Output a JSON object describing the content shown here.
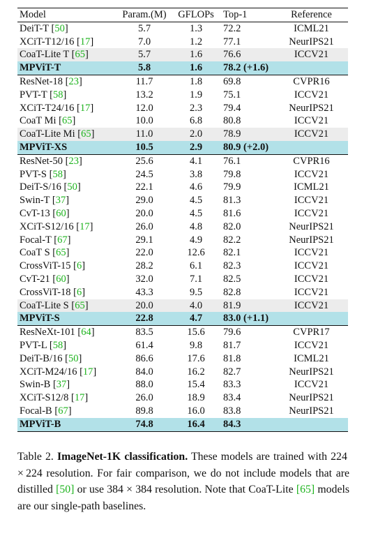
{
  "table": {
    "headers": [
      "Model",
      "Param.(M)",
      "GFLOPs",
      "Top-1",
      "Reference"
    ],
    "rows": [
      {
        "model": "DeiT-T",
        "cite": "50",
        "params": "5.7",
        "gflops": "1.3",
        "top1": "72.2",
        "ref": "ICML21",
        "style": "first"
      },
      {
        "model": "XCiT-T12/16",
        "cite": "17",
        "params": "7.0",
        "gflops": "1.2",
        "top1": "77.1",
        "ref": "NeurIPS21",
        "style": ""
      },
      {
        "model": "CoaT-Lite T",
        "cite": "65",
        "params": "5.7",
        "gflops": "1.6",
        "top1": "76.6",
        "ref": "ICCV21",
        "style": "baseline"
      },
      {
        "model": "MPViT-T",
        "cite": "",
        "params": "5.8",
        "gflops": "1.6",
        "top1": "78.2 (+1.6)",
        "ref": "",
        "style": "ours"
      },
      {
        "model": "ResNet-18",
        "cite": "23",
        "params": "11.7",
        "gflops": "1.8",
        "top1": "69.8",
        "ref": "CVPR16",
        "style": ""
      },
      {
        "model": "PVT-T",
        "cite": "58",
        "params": "13.2",
        "gflops": "1.9",
        "top1": "75.1",
        "ref": "ICCV21",
        "style": ""
      },
      {
        "model": "XCiT-T24/16",
        "cite": "17",
        "params": "12.0",
        "gflops": "2.3",
        "top1": "79.4",
        "ref": "NeurIPS21",
        "style": ""
      },
      {
        "model": "CoaT Mi",
        "cite": "65",
        "params": "10.0",
        "gflops": "6.8",
        "top1": "80.8",
        "ref": "ICCV21",
        "style": ""
      },
      {
        "model": "CoaT-Lite Mi",
        "cite": "65",
        "params": "11.0",
        "gflops": "2.0",
        "top1": "78.9",
        "ref": "ICCV21",
        "style": "baseline"
      },
      {
        "model": "MPViT-XS",
        "cite": "",
        "params": "10.5",
        "gflops": "2.9",
        "top1": "80.9 (+2.0)",
        "ref": "",
        "style": "ours"
      },
      {
        "model": "ResNet-50",
        "cite": "23",
        "params": "25.6",
        "gflops": "4.1",
        "top1": "76.1",
        "ref": "CVPR16",
        "style": ""
      },
      {
        "model": "PVT-S",
        "cite": "58",
        "params": "24.5",
        "gflops": "3.8",
        "top1": "79.8",
        "ref": "ICCV21",
        "style": ""
      },
      {
        "model": "DeiT-S/16",
        "cite": "50",
        "params": "22.1",
        "gflops": "4.6",
        "top1": "79.9",
        "ref": "ICML21",
        "style": ""
      },
      {
        "model": "Swin-T",
        "cite": "37",
        "params": "29.0",
        "gflops": "4.5",
        "top1": "81.3",
        "ref": "ICCV21",
        "style": ""
      },
      {
        "model": "CvT-13",
        "cite": "60",
        "params": "20.0",
        "gflops": "4.5",
        "top1": "81.6",
        "ref": "ICCV21",
        "style": ""
      },
      {
        "model": "XCiT-S12/16",
        "cite": "17",
        "params": "26.0",
        "gflops": "4.8",
        "top1": "82.0",
        "ref": "NeurIPS21",
        "style": ""
      },
      {
        "model": "Focal-T",
        "cite": "67",
        "params": "29.1",
        "gflops": "4.9",
        "top1": "82.2",
        "ref": "NeurIPS21",
        "style": ""
      },
      {
        "model": "CoaT S",
        "cite": "65",
        "params": "22.0",
        "gflops": "12.6",
        "top1": "82.1",
        "ref": "ICCV21",
        "style": ""
      },
      {
        "model": "CrossViT-15",
        "cite": "6",
        "params": "28.2",
        "gflops": "6.1",
        "top1": "82.3",
        "ref": "ICCV21",
        "style": ""
      },
      {
        "model": "CvT-21",
        "cite": "60",
        "params": "32.0",
        "gflops": "7.1",
        "top1": "82.5",
        "ref": "ICCV21",
        "style": ""
      },
      {
        "model": "CrossViT-18",
        "cite": "6",
        "params": "43.3",
        "gflops": "9.5",
        "top1": "82.8",
        "ref": "ICCV21",
        "style": ""
      },
      {
        "model": "CoaT-Lite S",
        "cite": "65",
        "params": "20.0",
        "gflops": "4.0",
        "top1": "81.9",
        "ref": "ICCV21",
        "style": "baseline"
      },
      {
        "model": "MPViT-S",
        "cite": "",
        "params": "22.8",
        "gflops": "4.7",
        "top1": "83.0 (+1.1)",
        "ref": "",
        "style": "ours"
      },
      {
        "model": "ResNeXt-101",
        "cite": "64",
        "params": "83.5",
        "gflops": "15.6",
        "top1": "79.6",
        "ref": "CVPR17",
        "style": ""
      },
      {
        "model": "PVT-L",
        "cite": "58",
        "params": "61.4",
        "gflops": "9.8",
        "top1": "81.7",
        "ref": "ICCV21",
        "style": ""
      },
      {
        "model": "DeiT-B/16",
        "cite": "50",
        "params": "86.6",
        "gflops": "17.6",
        "top1": "81.8",
        "ref": "ICML21",
        "style": ""
      },
      {
        "model": "XCiT-M24/16",
        "cite": "17",
        "params": "84.0",
        "gflops": "16.2",
        "top1": "82.7",
        "ref": "NeurIPS21",
        "style": ""
      },
      {
        "model": "Swin-B",
        "cite": "37",
        "params": "88.0",
        "gflops": "15.4",
        "top1": "83.3",
        "ref": "ICCV21",
        "style": ""
      },
      {
        "model": "XCiT-S12/8",
        "cite": "17",
        "params": "26.0",
        "gflops": "18.9",
        "top1": "83.4",
        "ref": "NeurIPS21",
        "style": ""
      },
      {
        "model": "Focal-B",
        "cite": "67",
        "params": "89.8",
        "gflops": "16.0",
        "top1": "83.8",
        "ref": "NeurIPS21",
        "style": ""
      },
      {
        "model": "MPViT-B",
        "cite": "",
        "params": "74.8",
        "gflops": "16.4",
        "top1": "84.3",
        "ref": "",
        "style": "ours last"
      }
    ]
  },
  "caption": {
    "label": "Table 2.",
    "title": "ImageNet-1K classification.",
    "text_1": " These models are trained with 224 × 224 resolution. For fair comparison, we do not include models that are distilled ",
    "cite_a": "[50]",
    "text_2": " or use 384 × 384 resolution. Note that CoaT-Lite ",
    "cite_b": "[65]",
    "text_3": " models are our single-path baselines."
  },
  "colors": {
    "ours_row": "#b2e1e8",
    "baseline_row": "#ececec",
    "citation": "#1db31d"
  }
}
